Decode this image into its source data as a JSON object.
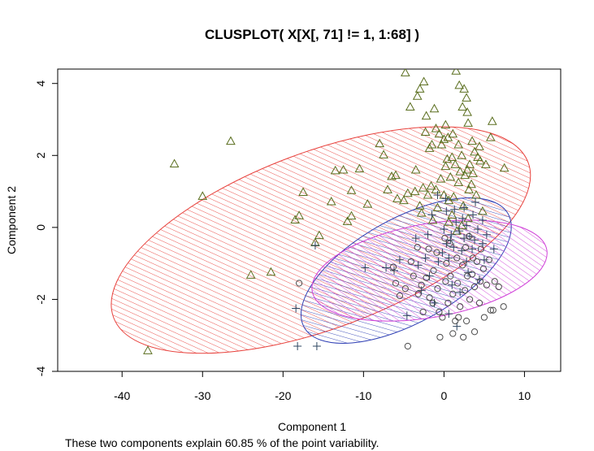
{
  "chart_data": {
    "type": "scatter",
    "title": "CLUSPLOT( X[X[, 71] != 1, 1:68] )",
    "xlabel": "Component 1",
    "ylabel": "Component 2",
    "subtitle": "These two components explain 60.85 % of the point variability.",
    "xlim": [
      -48,
      14.5
    ],
    "ylim": [
      -4,
      4.4
    ],
    "x_ticks": [
      -40,
      -30,
      -20,
      -10,
      0,
      10
    ],
    "y_ticks": [
      -4,
      -2,
      0,
      2,
      4
    ],
    "grid": false,
    "clusters": [
      {
        "shape": "triangle",
        "color": "#5a6e1e",
        "ellipse": {
          "color": "#e8413c",
          "center": [
            -15.3,
            -0.35
          ],
          "rx": 27.5,
          "ry": 2.45,
          "angle_deg": 20.5
        }
      },
      {
        "shape": "plus",
        "color": "#2e4660",
        "ellipse": {
          "color": "#3040b5",
          "center": [
            -4.7,
            -1.2
          ],
          "rx": 14.5,
          "ry": 1.45,
          "angle_deg": 29
        }
      },
      {
        "shape": "circle",
        "color": "#4a4a4a",
        "ellipse": {
          "color": "#d040d8",
          "center": [
            -1.8,
            -1.2
          ],
          "rx": 14.8,
          "ry": 1.3,
          "angle_deg": 10
        }
      }
    ],
    "series": [
      {
        "shape": "triangle",
        "points": [
          [
            -36.8,
            -3.42
          ],
          [
            -33.5,
            1.77
          ],
          [
            -30,
            0.87
          ],
          [
            -26.5,
            2.4
          ],
          [
            -24,
            -1.32
          ],
          [
            -21.5,
            -1.24
          ],
          [
            -18.5,
            0.21
          ],
          [
            -18,
            0.33
          ],
          [
            -17.5,
            0.98
          ],
          [
            -16,
            -0.42
          ],
          [
            -15.5,
            -0.22
          ],
          [
            -14,
            0.72
          ],
          [
            -13.5,
            1.58
          ],
          [
            -12.5,
            1.6
          ],
          [
            -12,
            0.17
          ],
          [
            -11.5,
            1.03
          ],
          [
            -11.5,
            0.32
          ],
          [
            -10.5,
            1.63
          ],
          [
            -9.5,
            0.65
          ],
          [
            -8,
            2.33
          ],
          [
            -7.5,
            2.02
          ],
          [
            -6.5,
            1.42
          ],
          [
            -5.8,
            0.8
          ],
          [
            -4.8,
            4.3
          ],
          [
            -4.2,
            3.35
          ],
          [
            -3.5,
            1.6
          ],
          [
            -3,
            3.85
          ],
          [
            -2.5,
            4.05
          ],
          [
            -2.2,
            3.1
          ],
          [
            -1.8,
            2.2
          ],
          [
            -1.5,
            2.3
          ],
          [
            -1.2,
            3.3
          ],
          [
            -1,
            2.75
          ],
          [
            -0.6,
            2.6
          ],
          [
            -0.3,
            2.3
          ],
          [
            0,
            2.45
          ],
          [
            0.2,
            1.7
          ],
          [
            0.4,
            1.9
          ],
          [
            0.5,
            2.5
          ],
          [
            1,
            1.95
          ],
          [
            1.5,
            4.35
          ],
          [
            2.3,
            3.35
          ],
          [
            2.8,
            3.6
          ],
          [
            3,
            2.9
          ],
          [
            3.5,
            2.4
          ],
          [
            3.8,
            2.1
          ],
          [
            4.5,
            1.85
          ],
          [
            5.2,
            1.75
          ],
          [
            5.8,
            2.5
          ],
          [
            6,
            2.95
          ],
          [
            7.5,
            1.65
          ],
          [
            2.5,
            3.85
          ],
          [
            1.8,
            2.3
          ],
          [
            2.2,
            2.0
          ],
          [
            0.8,
            1.4
          ],
          [
            2.0,
            1.55
          ],
          [
            3.2,
            1.75
          ],
          [
            4.2,
            1.95
          ],
          [
            -4.5,
            0.95
          ],
          [
            -3.6,
            1.0
          ],
          [
            -3.0,
            0.6
          ],
          [
            -2.6,
            1.1
          ],
          [
            -2.0,
            0.9
          ],
          [
            -1.6,
            1.15
          ],
          [
            -1.0,
            1.05
          ],
          [
            0.0,
            0.9
          ],
          [
            0.6,
            0.75
          ],
          [
            1.2,
            0.85
          ],
          [
            1.8,
            1.25
          ],
          [
            2.6,
            1.45
          ],
          [
            3.4,
            1.2
          ],
          [
            4.0,
            0.9
          ],
          [
            1.4,
            1.75
          ],
          [
            -0.4,
            1.35
          ],
          [
            -6.0,
            1.45
          ],
          [
            2.9,
            1.6
          ],
          [
            3.6,
            1.5
          ],
          [
            -5,
            0.75
          ],
          [
            -2.8,
            0.4
          ],
          [
            1.0,
            0.35
          ],
          [
            2.2,
            0.05
          ],
          [
            3.0,
            0.25
          ],
          [
            0.6,
            0.15
          ],
          [
            -0.8,
            0.55
          ],
          [
            4.8,
            0.45
          ],
          [
            1.6,
            -0.1
          ],
          [
            2.4,
            0.6
          ],
          [
            -1.4,
            0.2
          ],
          [
            2.9,
            3.2
          ],
          [
            -7,
            1.05
          ],
          [
            0.2,
            2.85
          ],
          [
            4.4,
            2.25
          ],
          [
            3.1,
            1.05
          ],
          [
            1.1,
            2.6
          ],
          [
            -3.3,
            3.65
          ],
          [
            -2.3,
            2.65
          ],
          [
            1.9,
            3.95
          ]
        ]
      },
      {
        "shape": "plus",
        "points": [
          [
            -18.2,
            -3.3
          ],
          [
            -15.8,
            -3.3
          ],
          [
            -18.4,
            -2.25
          ],
          [
            -16,
            -0.5
          ],
          [
            -9.8,
            -1.12
          ],
          [
            -7.2,
            -1.12
          ],
          [
            -6.2,
            -1.2
          ],
          [
            -5.5,
            -0.9
          ],
          [
            -4.6,
            -2.45
          ],
          [
            -3.2,
            -1.05
          ],
          [
            -2.3,
            -0.85
          ],
          [
            -1.8,
            -1.35
          ],
          [
            -0.7,
            -0.95
          ],
          [
            -0.2,
            -0.7
          ],
          [
            0,
            -0.05
          ],
          [
            0.3,
            -0.45
          ],
          [
            0.6,
            -0.85
          ],
          [
            0.9,
            -0.2
          ],
          [
            1.2,
            -0.55
          ],
          [
            1.5,
            0.15
          ],
          [
            1.9,
            -0.1
          ],
          [
            2.2,
            -0.65
          ],
          [
            2.5,
            -0.3
          ],
          [
            2.8,
            0.05
          ],
          [
            3.2,
            -0.25
          ],
          [
            3.5,
            -0.6
          ],
          [
            3.8,
            -0.35
          ],
          [
            4.2,
            -0.05
          ],
          [
            4.8,
            -0.45
          ],
          [
            5.3,
            -0.2
          ],
          [
            6.2,
            -0.6
          ],
          [
            1.0,
            -1.6
          ],
          [
            2.0,
            -1.8
          ],
          [
            0.6,
            -2.4
          ],
          [
            -1.2,
            -2.1
          ],
          [
            3.0,
            -1.25
          ],
          [
            2.5,
            0.55
          ],
          [
            0.2,
            0.8
          ],
          [
            -3.5,
            -0.3
          ],
          [
            -2.8,
            -1.75
          ],
          [
            1.6,
            -2.75
          ],
          [
            5,
            -0.9
          ],
          [
            3.6,
            0.35
          ],
          [
            2.3,
            0.25
          ],
          [
            -1.5,
            0.35
          ],
          [
            4.4,
            -1.45
          ],
          [
            0.8,
            -0.35
          ],
          [
            1.3,
            0.5
          ],
          [
            -2.0,
            -0.2
          ],
          [
            2.8,
            -0.95
          ],
          [
            3.9,
            0.7
          ],
          [
            -0.8,
            0.9
          ],
          [
            0.3,
            0.45
          ],
          [
            4.8,
            0.2
          ]
        ]
      },
      {
        "shape": "circle",
        "points": [
          [
            -18,
            -1.55
          ],
          [
            -4.5,
            -3.3
          ],
          [
            -6,
            -1.55
          ],
          [
            -5.5,
            -1.9
          ],
          [
            -4.8,
            -1.7
          ],
          [
            -3.8,
            -1.35
          ],
          [
            -3.2,
            -1.85
          ],
          [
            -2.8,
            -1.6
          ],
          [
            -2.2,
            -1.4
          ],
          [
            -1.8,
            -1.95
          ],
          [
            -1.3,
            -1.2
          ],
          [
            -0.8,
            -1.7
          ],
          [
            -0.5,
            -3.05
          ],
          [
            -0.2,
            -2.5
          ],
          [
            0.2,
            -1.5
          ],
          [
            0.5,
            -2.1
          ],
          [
            0.8,
            -1.35
          ],
          [
            1.1,
            -1.85
          ],
          [
            1.4,
            -2.6
          ],
          [
            1.7,
            -1.55
          ],
          [
            2,
            -2.2
          ],
          [
            2.3,
            -1.05
          ],
          [
            2.6,
            -1.75
          ],
          [
            2.9,
            -1.35
          ],
          [
            3.2,
            -2.0
          ],
          [
            3.5,
            -1.3
          ],
          [
            3.8,
            -1.65
          ],
          [
            4.1,
            -0.95
          ],
          [
            4.5,
            -1.5
          ],
          [
            4.9,
            -1.15
          ],
          [
            5.3,
            -1.6
          ],
          [
            5.8,
            -2.3
          ],
          [
            6.3,
            -1.5
          ],
          [
            6.8,
            -1.65
          ],
          [
            7.4,
            -2.2
          ],
          [
            6.1,
            -2.3
          ],
          [
            5,
            -2.5
          ],
          [
            4.4,
            -2.1
          ],
          [
            3.8,
            -2.9
          ],
          [
            2.8,
            -2.6
          ],
          [
            1.8,
            -2.5
          ],
          [
            -1.4,
            -2.1
          ],
          [
            -2.6,
            -2.35
          ],
          [
            0.3,
            -1.0
          ],
          [
            1.6,
            -0.85
          ],
          [
            2.7,
            -0.55
          ],
          [
            3.6,
            -0.85
          ],
          [
            -0.9,
            -0.7
          ],
          [
            -1.9,
            -0.6
          ],
          [
            0.7,
            -0.45
          ],
          [
            4.6,
            -0.6
          ],
          [
            -4.1,
            -0.95
          ],
          [
            -3.3,
            -0.55
          ],
          [
            1.1,
            -2.95
          ],
          [
            2.4,
            -3.05
          ],
          [
            -6.3,
            -1.1
          ],
          [
            -0.6,
            -2.35
          ],
          [
            5.6,
            -0.9
          ],
          [
            3.1,
            -0.25
          ],
          [
            0.1,
            -0.3
          ]
        ]
      }
    ]
  }
}
